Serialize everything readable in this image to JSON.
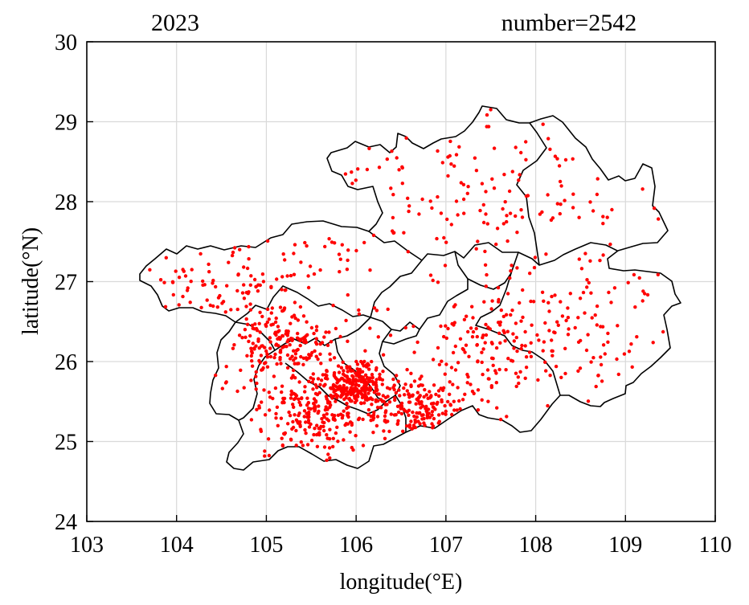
{
  "title_left": "2023",
  "title_right": "number=2542",
  "xlabel": "longitude(°E)",
  "ylabel": "latitude(°N)",
  "xticks": [
    "103",
    "104",
    "105",
    "106",
    "107",
    "108",
    "109",
    "110"
  ],
  "yticks": [
    "24",
    "25",
    "26",
    "27",
    "28",
    "29",
    "30"
  ],
  "colors": {
    "points": "#ff0000",
    "boundary": "#000000",
    "grid": "#d9d9d9"
  },
  "chart_data": {
    "type": "scatter",
    "title": "2023",
    "annotation": "number=2542",
    "xlabel": "longitude(°E)",
    "ylabel": "latitude(°N)",
    "xlim": [
      103,
      110
    ],
    "ylim": [
      24,
      30
    ],
    "grid": true,
    "point_count_shown": 2542,
    "density_clusters_approx": [
      {
        "lon": 105.2,
        "lat": 26.2,
        "relative_density": "high"
      },
      {
        "lon": 106.0,
        "lat": 25.7,
        "relative_density": "very high"
      },
      {
        "lon": 106.7,
        "lat": 25.4,
        "relative_density": "high"
      },
      {
        "lon": 105.5,
        "lat": 25.3,
        "relative_density": "high"
      },
      {
        "lon": 107.5,
        "lat": 26.2,
        "relative_density": "medium"
      },
      {
        "lon": 108.5,
        "lat": 26.6,
        "relative_density": "low"
      },
      {
        "lon": 107.3,
        "lat": 28.1,
        "relative_density": "low"
      },
      {
        "lon": 104.3,
        "lat": 27.0,
        "relative_density": "low"
      }
    ]
  }
}
